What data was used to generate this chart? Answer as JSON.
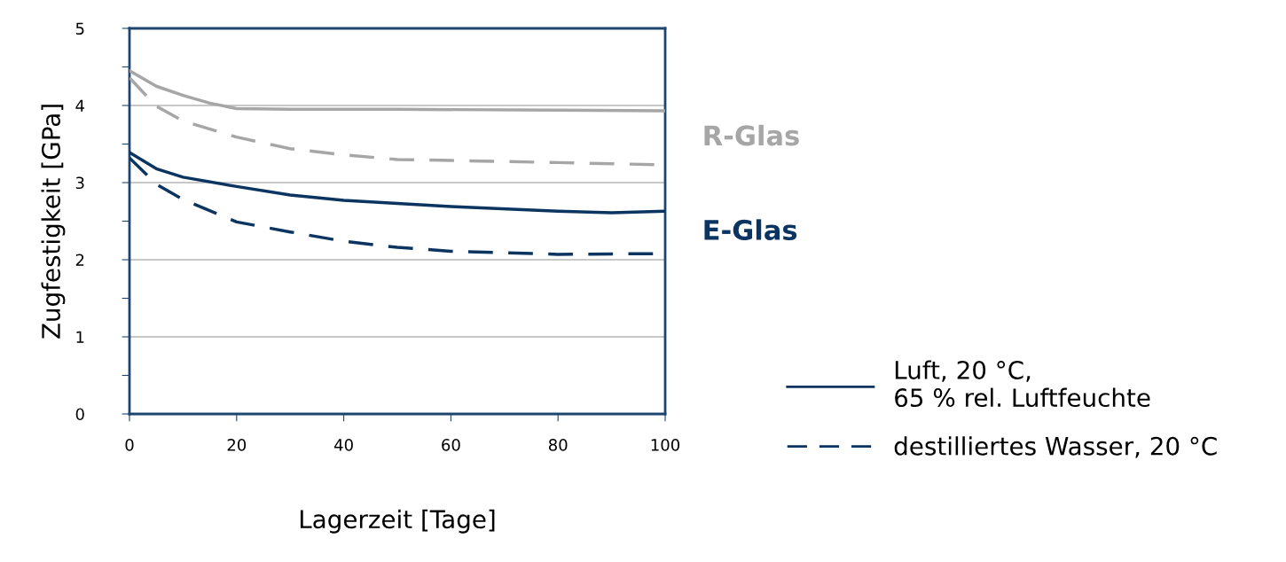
{
  "chart_data": {
    "type": "line",
    "xlabel": "Lagerzeit [Tage]",
    "ylabel": "Zugfestigkeit [GPa]",
    "xlim": [
      0,
      100
    ],
    "xticks": [
      0,
      20,
      40,
      60,
      80,
      100
    ],
    "ylim": [
      0,
      5
    ],
    "yticks": [
      0,
      {
        "value": 0.5,
        "label": null
      },
      1,
      {
        "value": 1.5,
        "label": null
      },
      2,
      {
        "value": 2.5,
        "label": null
      },
      3,
      {
        "value": 3.5,
        "label": null
      },
      4,
      {
        "value": 4.5,
        "label": null
      },
      5
    ],
    "grid": "y",
    "legend": "right",
    "marker": "none",
    "series": [
      {
        "color": "#a6a6a6",
        "line_style": "solid",
        "x": [
          0,
          5,
          10,
          15,
          20,
          30,
          50,
          80,
          100
        ],
        "values": [
          4.45,
          4.25,
          4.13,
          4.03,
          3.96,
          3.95,
          3.95,
          3.94,
          3.93
        ]
      },
      {
        "color": "#a6a6a6",
        "line_style": "dashed",
        "x": [
          0,
          5,
          10,
          20,
          30,
          40,
          50,
          80,
          100
        ],
        "values": [
          4.36,
          3.99,
          3.8,
          3.59,
          3.44,
          3.36,
          3.3,
          3.26,
          3.23
        ]
      },
      {
        "name": "Luft, 20 °C,\n65 % rel. Luftfeuchte",
        "color": "#0b3560",
        "line_style": "solid",
        "x": [
          0,
          5,
          10,
          20,
          30,
          40,
          60,
          80,
          90,
          100
        ],
        "values": [
          3.39,
          3.18,
          3.07,
          2.95,
          2.84,
          2.77,
          2.69,
          2.63,
          2.61,
          2.63
        ]
      },
      {
        "name": "destilliertes Wasser, 20 °C",
        "color": "#0b3560",
        "line_style": "dashed",
        "x": [
          0,
          5,
          10,
          20,
          30,
          40,
          50,
          60,
          80,
          100
        ],
        "values": [
          3.32,
          2.98,
          2.78,
          2.49,
          2.36,
          2.24,
          2.16,
          2.11,
          2.07,
          2.08
        ]
      }
    ],
    "annotations": [
      "R-Glas",
      "E-Glas"
    ]
  }
}
